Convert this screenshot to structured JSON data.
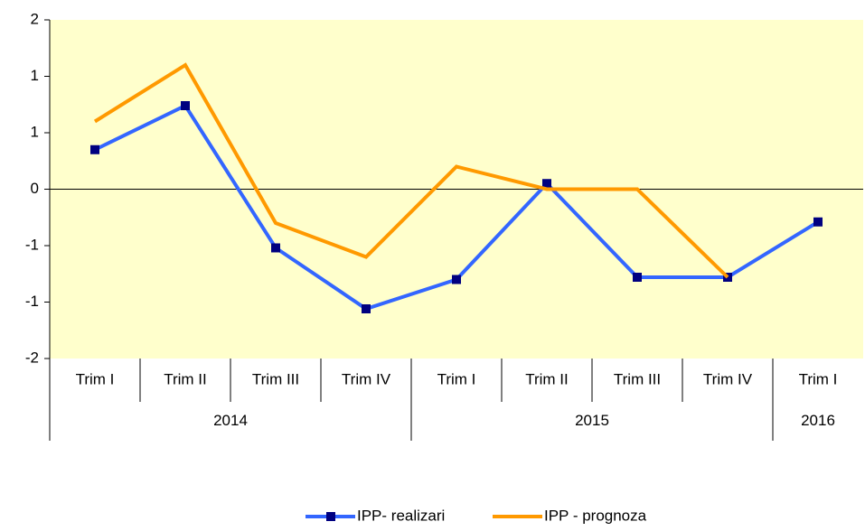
{
  "chart_data": {
    "type": "line",
    "groups": [
      {
        "name": "2014",
        "categories": [
          "Trim I",
          "Trim II",
          "Trim III",
          "Trim IV"
        ]
      },
      {
        "name": "2015",
        "categories": [
          "Trim I",
          "Trim II",
          "Trim III",
          "Trim IV"
        ]
      },
      {
        "name": "2016",
        "categories": [
          "Trim I"
        ]
      }
    ],
    "series": [
      {
        "name": "IPP- realizari",
        "color": "#3366ff",
        "marker_color": "#000080",
        "values": [
          0.35,
          0.74,
          -0.52,
          -1.06,
          -0.8,
          0.05,
          -0.78,
          -0.78,
          -0.29
        ]
      },
      {
        "name": "IPP - prognoza",
        "color": "#ff9900",
        "values": [
          0.6,
          1.1,
          -0.3,
          -0.6,
          0.2,
          0,
          0,
          -0.78,
          null
        ]
      }
    ],
    "ylim": [
      -1.5,
      1.5
    ],
    "yticks": [
      {
        "value": -1.5,
        "label": "-2"
      },
      {
        "value": -1,
        "label": "-1"
      },
      {
        "value": -0.5,
        "label": "-1"
      },
      0,
      {
        "value": 0.5,
        "label": "1"
      },
      1,
      {
        "value": 1.5,
        "label": "2"
      }
    ],
    "plot_background": "#ffffcc",
    "legend": "bottom"
  }
}
